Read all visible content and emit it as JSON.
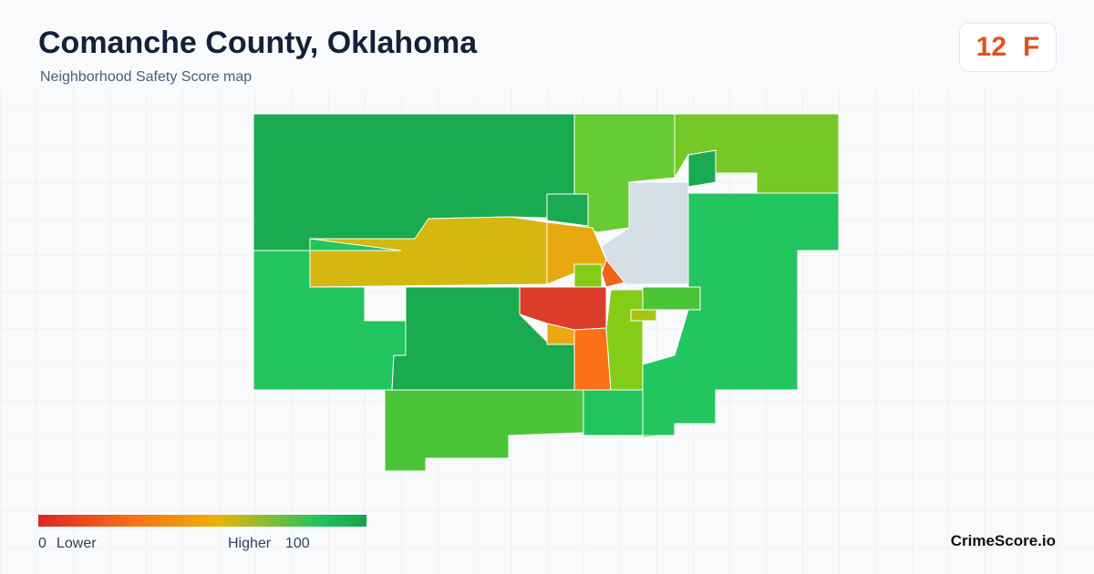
{
  "header": {
    "title": "Comanche County, Oklahoma",
    "subtitle": "Neighborhood Safety Score map"
  },
  "score": {
    "value": 12,
    "grade": "F"
  },
  "legend": {
    "min": 0,
    "min_label": "Lower",
    "max_label": "Higher",
    "max": 100
  },
  "brand": "CrimeScore.io"
}
